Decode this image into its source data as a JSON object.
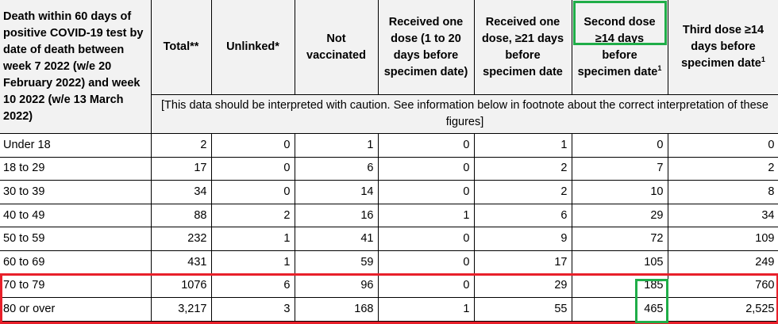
{
  "table": {
    "corner_header": "Death within 60 days of positive COVID-19 test by date of death between week 7 2022 (w/e 20 February 2022) and week 10 2022 (w/e 13 March 2022)",
    "columns": [
      "Total**",
      "Unlinked*",
      "Not vaccinated",
      "Received one dose (1 to 20 days before specimen date)",
      "Received one dose, ≥21 days before specimen date",
      "Second dose ≥14 days before specimen date",
      "Third dose ≥14 days before specimen date"
    ],
    "superscripts": {
      "col5": "1",
      "col6": "1"
    },
    "caution_note": "[This data should be interpreted with caution. See information below in footnote about the correct interpretation of these figures]",
    "rows": [
      {
        "label": "Under 18",
        "values": [
          "2",
          "0",
          "1",
          "0",
          "1",
          "0",
          "0"
        ]
      },
      {
        "label": "18 to 29",
        "values": [
          "17",
          "0",
          "6",
          "0",
          "2",
          "7",
          "2"
        ]
      },
      {
        "label": "30 to 39",
        "values": [
          "34",
          "0",
          "14",
          "0",
          "2",
          "10",
          "8"
        ]
      },
      {
        "label": "40 to 49",
        "values": [
          "88",
          "2",
          "16",
          "1",
          "6",
          "29",
          "34"
        ]
      },
      {
        "label": "50 to 59",
        "values": [
          "232",
          "1",
          "41",
          "0",
          "9",
          "72",
          "109"
        ]
      },
      {
        "label": "60 to 69",
        "values": [
          "431",
          "1",
          "59",
          "0",
          "17",
          "105",
          "249"
        ]
      },
      {
        "label": "70 to 79",
        "values": [
          "1076",
          "6",
          "96",
          "0",
          "29",
          "185",
          "760"
        ]
      },
      {
        "label": "80 or over",
        "values": [
          "3,217",
          "3",
          "168",
          "1",
          "55",
          "465",
          "2,525"
        ]
      }
    ]
  },
  "annotations": {
    "red_box_color": "#e8202a",
    "green_box_color": "#1fad48"
  }
}
